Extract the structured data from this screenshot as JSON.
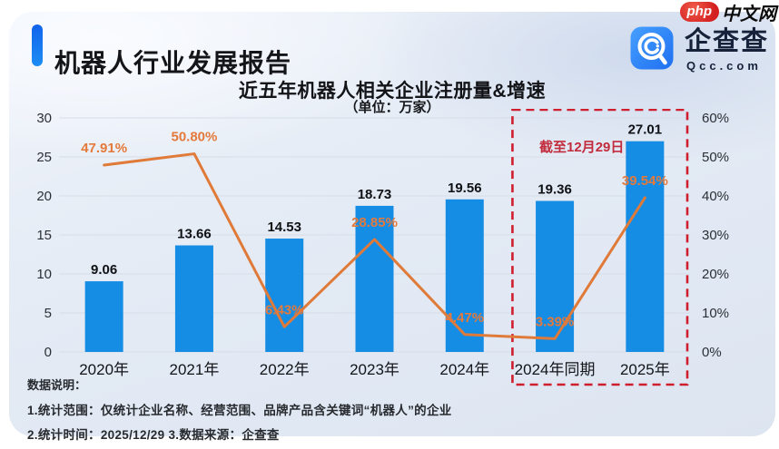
{
  "watermark": {
    "badge": "php",
    "site": "中文网"
  },
  "header": {
    "title": "机器人行业发展报告"
  },
  "logo": {
    "name": "企查查",
    "domain": "Qcc.com"
  },
  "chart_data": {
    "type": "bar",
    "title": "近五年机器人相关企业注册量&增速",
    "unit_note": "（单位：万家）",
    "categories": [
      "2020年",
      "2021年",
      "2022年",
      "2023年",
      "2024年",
      "2024年同期",
      "2025年"
    ],
    "series": [
      {
        "name": "注册量(万家)",
        "type": "bar",
        "values": [
          9.06,
          13.66,
          14.53,
          18.73,
          19.56,
          19.36,
          27.01
        ],
        "labels": [
          "9.06",
          "13.66",
          "14.53",
          "18.73",
          "19.56",
          "19.36",
          "27.01"
        ],
        "color": "#168de4"
      },
      {
        "name": "增速(%)",
        "type": "line",
        "values": [
          47.91,
          50.8,
          6.43,
          28.85,
          4.47,
          3.39,
          39.54
        ],
        "labels": [
          "47.91%",
          "50.80%",
          "6.43%",
          "28.85%",
          "4.47%",
          "3.39%",
          "39.54%"
        ],
        "color": "#e07a39"
      }
    ],
    "left_axis": {
      "min": 0,
      "max": 30,
      "step": 5,
      "ticks": [
        "0",
        "5",
        "10",
        "15",
        "20",
        "25",
        "30"
      ]
    },
    "right_axis": {
      "min": 0,
      "max": 60,
      "step": 10,
      "ticks": [
        "0%",
        "10%",
        "20%",
        "30%",
        "40%",
        "50%",
        "60%"
      ]
    },
    "grid": true,
    "legend": "none",
    "annotation": {
      "label": "截至12月29日",
      "box_categories": [
        "2024年同期",
        "2025年"
      ],
      "box_color": "#cf1f2f"
    }
  },
  "footnotes": {
    "heading": "数据说明：",
    "line1": "1.统计范围：仅统计企业名称、经营范围、品牌产品含关键词“机器人”的企业",
    "line2": "2.统计时间：2025/12/29  3.数据来源：企查查"
  }
}
